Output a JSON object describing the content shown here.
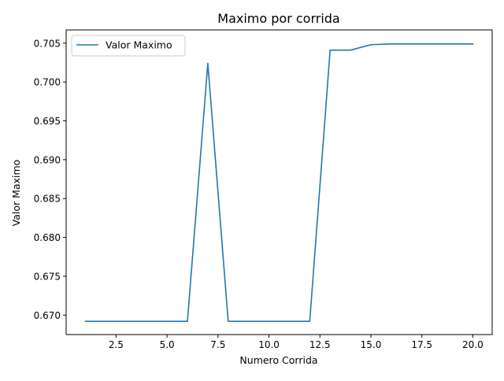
{
  "chart_data": {
    "type": "line",
    "title": "Maximo por corrida",
    "xlabel": "Numero Corrida",
    "ylabel": "Valor Maximo",
    "xlim": [
      0.05,
      20.95
    ],
    "ylim": [
      0.6675,
      0.7067
    ],
    "xticks": [
      2.5,
      5.0,
      7.5,
      10.0,
      12.5,
      15.0,
      17.5,
      20.0
    ],
    "xtick_labels": [
      "2.5",
      "5.0",
      "7.5",
      "10.0",
      "12.5",
      "15.0",
      "17.5",
      "20.0"
    ],
    "yticks": [
      0.67,
      0.675,
      0.68,
      0.685,
      0.69,
      0.695,
      0.7,
      0.705
    ],
    "ytick_labels": [
      "0.670",
      "0.675",
      "0.680",
      "0.685",
      "0.690",
      "0.695",
      "0.700",
      "0.705"
    ],
    "grid": false,
    "legend_position": "upper-left",
    "series": [
      {
        "name": "Valor Maximo",
        "color": "#1f77b4",
        "x": [
          1,
          2,
          3,
          4,
          5,
          6,
          7,
          8,
          9,
          10,
          11,
          12,
          13,
          14,
          15,
          16,
          17,
          18,
          19,
          20
        ],
        "y": [
          0.6692,
          0.6692,
          0.6692,
          0.6692,
          0.6692,
          0.6692,
          0.7024,
          0.6692,
          0.6692,
          0.6692,
          0.6692,
          0.6692,
          0.7041,
          0.7041,
          0.7048,
          0.7049,
          0.7049,
          0.7049,
          0.7049,
          0.7049
        ]
      }
    ]
  }
}
